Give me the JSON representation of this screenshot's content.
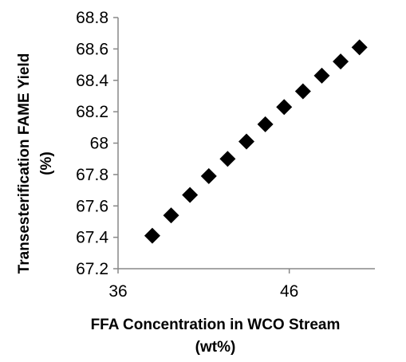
{
  "chart_data": {
    "type": "scatter",
    "title": "",
    "xlabel_line1": "FFA Concentration  in WCO Stream",
    "xlabel_line2": "(wt%)",
    "ylabel_line1": "Transesterification  FAME Yield",
    "ylabel_line2": "(%)",
    "xlim": [
      36,
      51
    ],
    "ylim": [
      67.2,
      68.8
    ],
    "x_ticks": [
      36,
      46
    ],
    "x_tick_labels": [
      "36",
      "46"
    ],
    "y_ticks": [
      67.2,
      67.4,
      67.6,
      67.8,
      68.0,
      68.2,
      68.4,
      68.6,
      68.8
    ],
    "y_tick_labels": [
      "67.2",
      "67.4",
      "67.6",
      "67.8",
      "68",
      "68.2",
      "68.4",
      "68.6",
      "68.8"
    ],
    "grid": false,
    "legend": "none",
    "marker": "diamond",
    "marker_color": "#000000",
    "series": [
      {
        "x": [
          38,
          39.1,
          40.2,
          41.3,
          42.4,
          43.5,
          44.6,
          45.7,
          46.8,
          47.9,
          49,
          50.1
        ],
        "y": [
          67.41,
          67.54,
          67.67,
          67.79,
          67.9,
          68.01,
          68.12,
          68.23,
          68.33,
          68.43,
          68.52,
          68.61
        ]
      }
    ]
  }
}
